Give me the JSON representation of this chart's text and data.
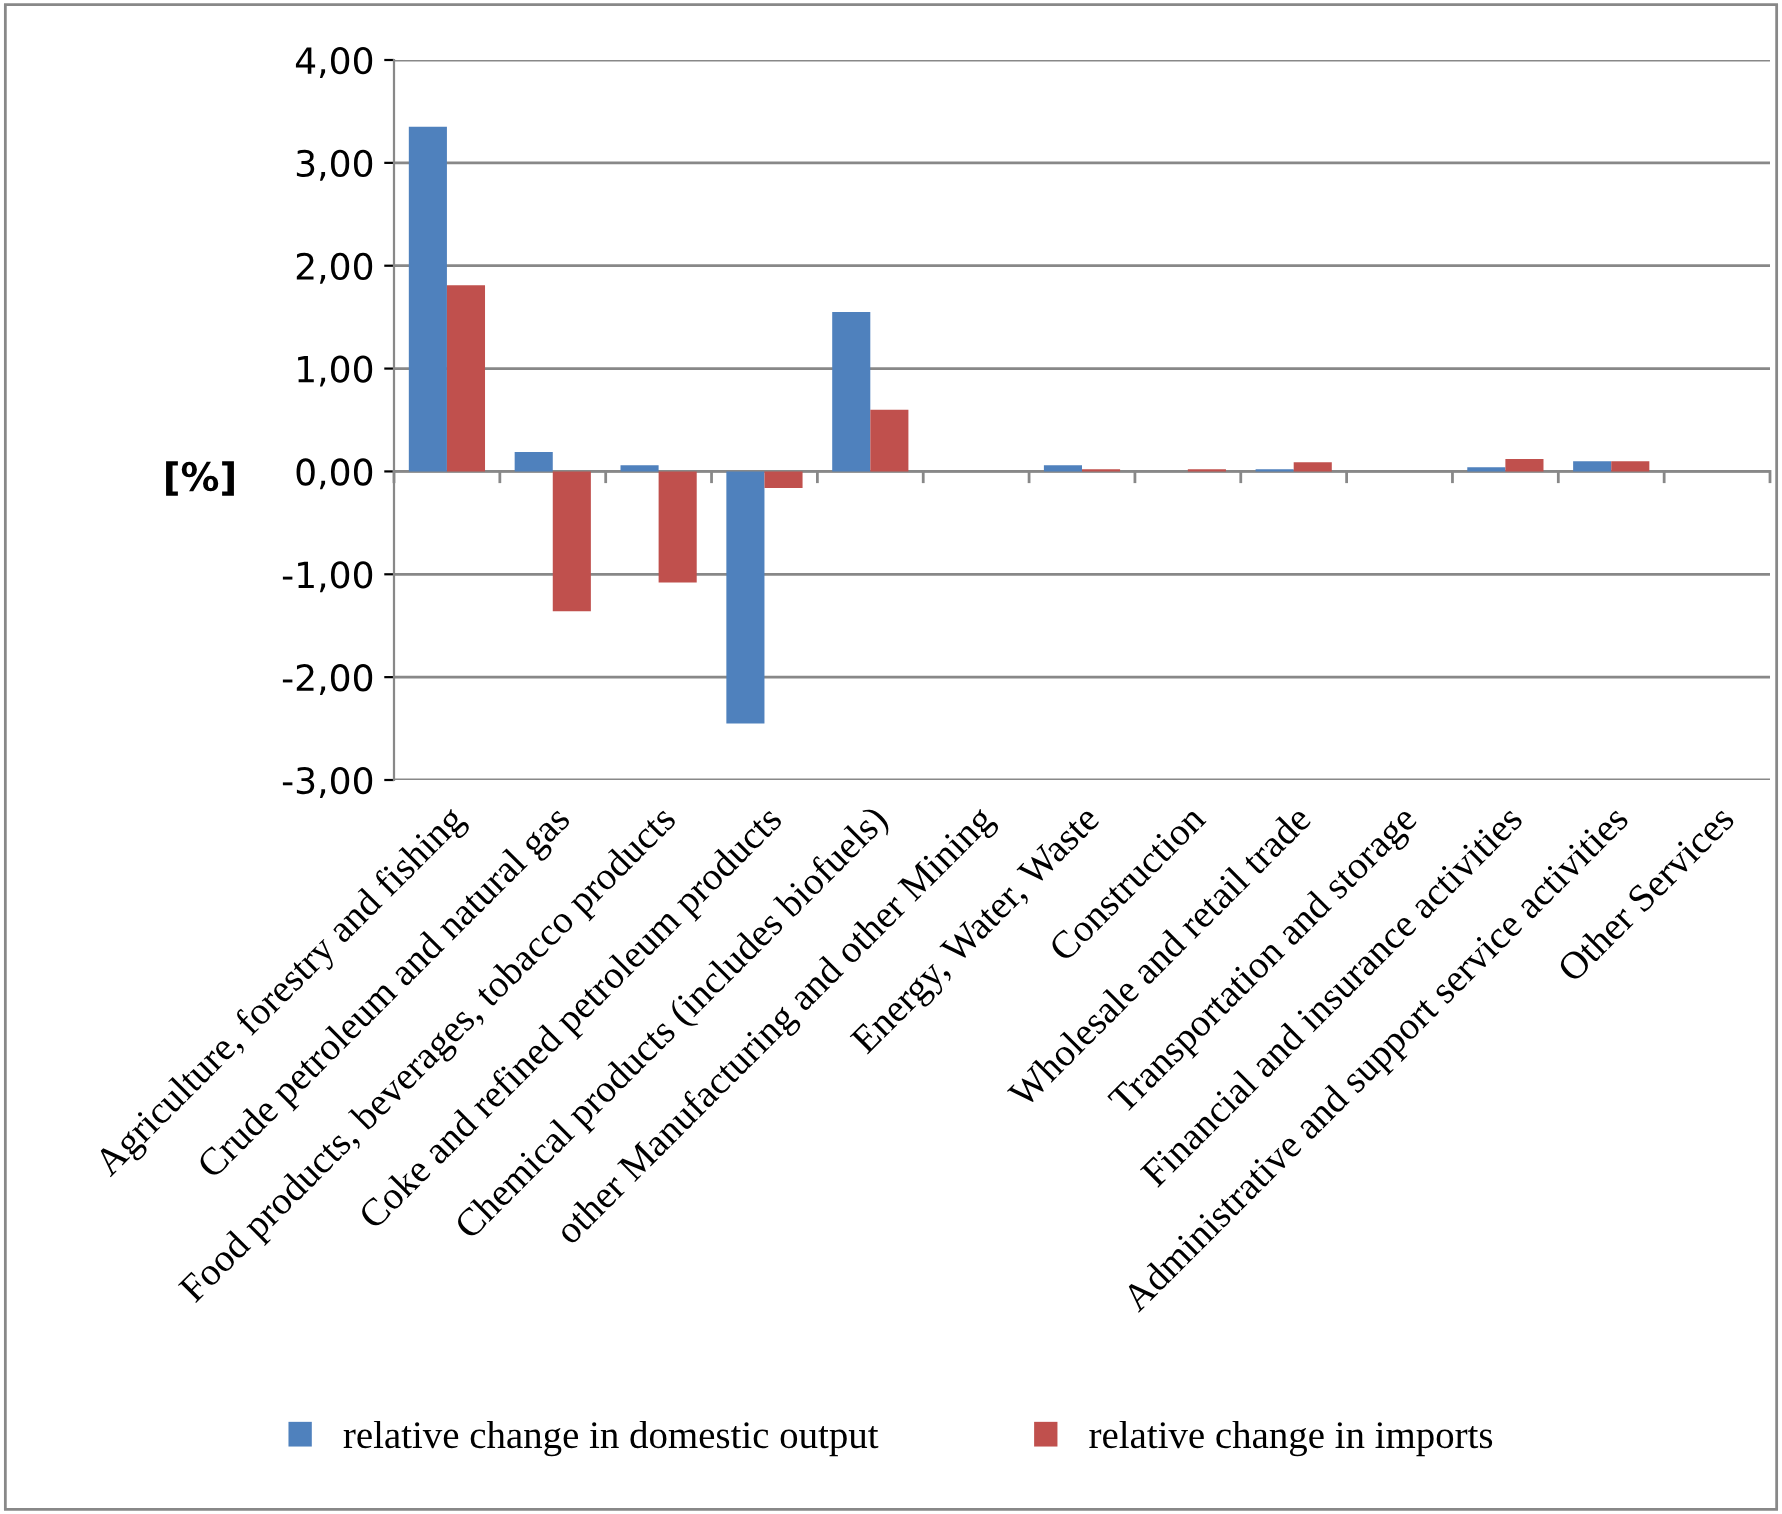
{
  "chart_data": {
    "type": "bar",
    "ylabel": "[%]",
    "categories": [
      "Agriculture, forestry and fishing",
      "Crude petroleum and natural gas",
      "Food products, beverages, tobacco products",
      "Coke and refined petroleum products",
      "Chemical products (includes biofuels)",
      "other Manufacturing and other Mining",
      "Energy, Water, Waste",
      "Construction",
      "Wholesale and retail trade",
      "Transportation and storage",
      "Financial and insurance activities",
      "Administrative and support service activities",
      "Other Services"
    ],
    "series": [
      {
        "name": "relative change in domestic output",
        "color": "#4f81bd",
        "values": [
          3.35,
          0.19,
          0.06,
          -2.45,
          1.55,
          0,
          0.06,
          0,
          0.02,
          0,
          0.04,
          0.1,
          0
        ]
      },
      {
        "name": "relative change in imports",
        "color": "#c0504d",
        "values": [
          1.81,
          -1.36,
          -1.08,
          -0.16,
          0.6,
          0,
          0.02,
          0.02,
          0.09,
          0,
          0.12,
          0.1,
          0
        ]
      }
    ],
    "ylim": [
      -3,
      4
    ],
    "yticks": [
      {
        "value": -3,
        "label": "-3,00"
      },
      {
        "value": -2,
        "label": "-2,00"
      },
      {
        "value": -1,
        "label": "-1,00"
      },
      {
        "value": 0,
        "label": "0,00"
      },
      {
        "value": 1,
        "label": "1,00"
      },
      {
        "value": 2,
        "label": "2,00"
      },
      {
        "value": 3,
        "label": "3,00"
      },
      {
        "value": 4,
        "label": "4,00"
      }
    ],
    "grid": "y",
    "legend": "bottom"
  }
}
